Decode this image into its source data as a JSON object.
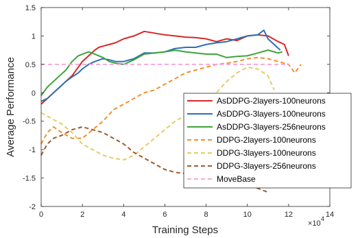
{
  "chart_data": {
    "type": "line",
    "xlabel": "Training Steps",
    "ylabel": "Average Performance",
    "x_multiplier": "10",
    "x_exponent": "4",
    "xlim": [
      0,
      14
    ],
    "ylim": [
      -2,
      1.5
    ],
    "xticks": [
      "0",
      "2",
      "4",
      "6",
      "8",
      "10",
      "12",
      "14"
    ],
    "yticks": [
      "-2",
      "-1.5",
      "-1",
      "-0.5",
      "0",
      "0.5",
      "1",
      "1.5"
    ],
    "grid": false,
    "legend_position": "right",
    "series": [
      {
        "name": "AsDDPG-2layers-100neurons",
        "color": "#d62728",
        "dash": "solid",
        "x": [
          0,
          0.3,
          0.6,
          0.9,
          1.2,
          1.5,
          1.8,
          2.0,
          2.3,
          2.6,
          2.8,
          3.0,
          3.3,
          3.6,
          4.0,
          4.5,
          5.0,
          5.5,
          6.0,
          6.5,
          7.0,
          7.5,
          8.0,
          8.5,
          9.0,
          9.5,
          10.0,
          10.5,
          11.0,
          11.5,
          11.8,
          12.0
        ],
        "y": [
          -0.2,
          -0.1,
          0.0,
          0.1,
          0.2,
          0.3,
          0.45,
          0.55,
          0.65,
          0.75,
          0.8,
          0.82,
          0.85,
          0.88,
          0.95,
          1.0,
          1.08,
          1.05,
          1.02,
          1.0,
          0.98,
          0.97,
          0.95,
          0.9,
          0.95,
          0.92,
          1.0,
          1.02,
          1.0,
          0.9,
          0.85,
          0.65
        ]
      },
      {
        "name": "AsDDPG-3layers-100neurons",
        "color": "#2b6fb5",
        "dash": "solid",
        "x": [
          0,
          0.3,
          0.6,
          0.9,
          1.2,
          1.5,
          1.8,
          2.0,
          2.3,
          2.6,
          3.0,
          3.3,
          3.6,
          4.0,
          4.5,
          5.0,
          5.5,
          6.0,
          6.5,
          7.0,
          7.5,
          8.0,
          8.5,
          9.0,
          9.5,
          10.0,
          10.5,
          10.8,
          11.0,
          11.3,
          11.6
        ],
        "y": [
          -0.15,
          -0.1,
          0.0,
          0.1,
          0.2,
          0.28,
          0.35,
          0.42,
          0.5,
          0.55,
          0.6,
          0.58,
          0.55,
          0.55,
          0.6,
          0.7,
          0.7,
          0.72,
          0.78,
          0.8,
          0.8,
          0.85,
          0.88,
          0.9,
          0.95,
          1.0,
          1.02,
          1.1,
          0.95,
          0.85,
          0.75
        ]
      },
      {
        "name": "AsDDPG-3layers-256neurons",
        "color": "#3ea33a",
        "dash": "solid",
        "x": [
          0,
          0.3,
          0.6,
          0.9,
          1.2,
          1.5,
          1.8,
          2.0,
          2.3,
          2.6,
          3.0,
          3.3,
          3.6,
          4.0,
          4.5,
          5.0,
          5.5,
          6.0,
          6.5,
          7.0,
          7.5,
          8.0,
          8.5,
          9.0,
          9.5,
          10.0,
          10.5,
          11.0,
          11.5,
          11.7
        ],
        "y": [
          -0.05,
          0.1,
          0.2,
          0.3,
          0.4,
          0.55,
          0.65,
          0.68,
          0.72,
          0.68,
          0.62,
          0.55,
          0.52,
          0.5,
          0.58,
          0.68,
          0.7,
          0.72,
          0.75,
          0.72,
          0.7,
          0.68,
          0.68,
          0.62,
          0.64,
          0.65,
          0.7,
          0.75,
          0.7,
          0.72
        ]
      },
      {
        "name": "DDPG-2layers-100neurons",
        "color": "#f28e2b",
        "dash": "dashed",
        "x": [
          0,
          0.3,
          0.6,
          1.0,
          1.5,
          2.0,
          2.5,
          3.0,
          3.5,
          4.0,
          4.5,
          5.0,
          5.5,
          6.0,
          6.5,
          7.0,
          7.5,
          8.0,
          8.5,
          9.0,
          9.5,
          10.0,
          10.5,
          11.0,
          11.5,
          12.0,
          12.3,
          12.6
        ],
        "y": [
          -0.9,
          -0.7,
          -0.6,
          -0.7,
          -0.8,
          -0.8,
          -0.65,
          -0.5,
          -0.3,
          -0.2,
          -0.1,
          0.0,
          0.05,
          0.15,
          0.25,
          0.35,
          0.4,
          0.45,
          0.5,
          0.52,
          0.55,
          0.6,
          0.62,
          0.6,
          0.55,
          0.5,
          0.35,
          0.5
        ]
      },
      {
        "name": "DDPG-3layers-100neurons",
        "color": "#e3cd63",
        "dash": "dashed",
        "x": [
          0,
          0.5,
          1.0,
          1.5,
          2.0,
          2.5,
          3.0,
          3.5,
          4.0,
          4.5,
          5.0,
          5.5,
          6.0,
          6.5,
          7.0,
          7.5,
          8.0,
          8.5,
          9.0,
          9.5,
          10.0,
          10.5,
          11.0,
          11.3
        ],
        "y": [
          -0.35,
          -0.45,
          -0.55,
          -0.7,
          -0.9,
          -1.0,
          -1.1,
          -1.15,
          -1.18,
          -1.1,
          -0.95,
          -0.8,
          -0.65,
          -0.5,
          -0.4,
          -0.3,
          -0.15,
          0.0,
          0.2,
          0.35,
          0.45,
          0.42,
          0.3,
          0.05
        ]
      },
      {
        "name": "DDPG-3layers-256neurons",
        "color": "#9c5a2e",
        "dash": "dashed",
        "x": [
          0,
          0.3,
          0.6,
          1.0,
          1.5,
          2.0,
          2.5,
          3.0,
          3.5,
          4.0,
          4.5,
          5.0,
          5.5,
          6.0,
          6.5,
          7.0,
          7.5,
          8.0,
          8.5,
          9.0,
          9.5,
          10.0,
          10.5,
          11.0
        ],
        "y": [
          -1.1,
          -0.9,
          -0.8,
          -0.75,
          -0.65,
          -0.6,
          -0.65,
          -0.7,
          -0.8,
          -0.9,
          -1.05,
          -1.15,
          -1.25,
          -1.35,
          -1.4,
          -1.42,
          -1.48,
          -1.52,
          -1.55,
          -1.58,
          -1.6,
          -1.62,
          -1.68,
          -1.75
        ]
      },
      {
        "name": "MoveBase",
        "color": "#f7a8d8",
        "dash": "dashed",
        "x": [
          0,
          12
        ],
        "y": [
          0.5,
          0.5
        ]
      }
    ]
  }
}
